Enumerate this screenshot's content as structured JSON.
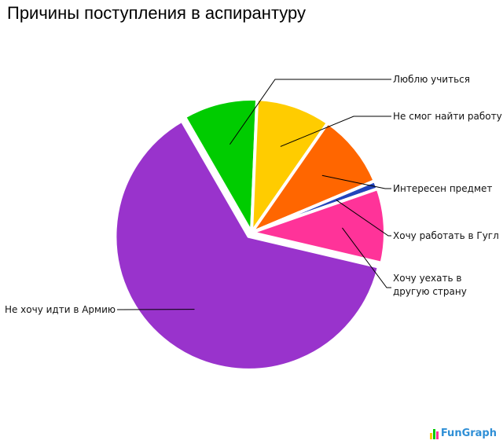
{
  "chart_data": {
    "type": "pie",
    "title": "Причины поступления в аспирантуру",
    "slices": [
      {
        "label": "Люблю учиться",
        "value": 9,
        "color": "#00cc00"
      },
      {
        "label": "Не смог найти работу",
        "value": 9,
        "color": "#ffcc00"
      },
      {
        "label": "Интересен предмет",
        "value": 9,
        "color": "#ff6600"
      },
      {
        "label": "Хочу работать в Гугл",
        "value": 1,
        "color": "#2244bb"
      },
      {
        "label": "Хочу уехать в другую страну",
        "label_lines": [
          "Хочу уехать в",
          "другую страну"
        ],
        "value": 9,
        "color": "#ff3399"
      },
      {
        "label": "Не хочу идти в Армию",
        "value": 63,
        "color": "#9933cc"
      }
    ]
  },
  "watermark": {
    "text": "FunGraph",
    "bar_colors": [
      "#ffcc00",
      "#00cc00",
      "#ff3399"
    ]
  }
}
